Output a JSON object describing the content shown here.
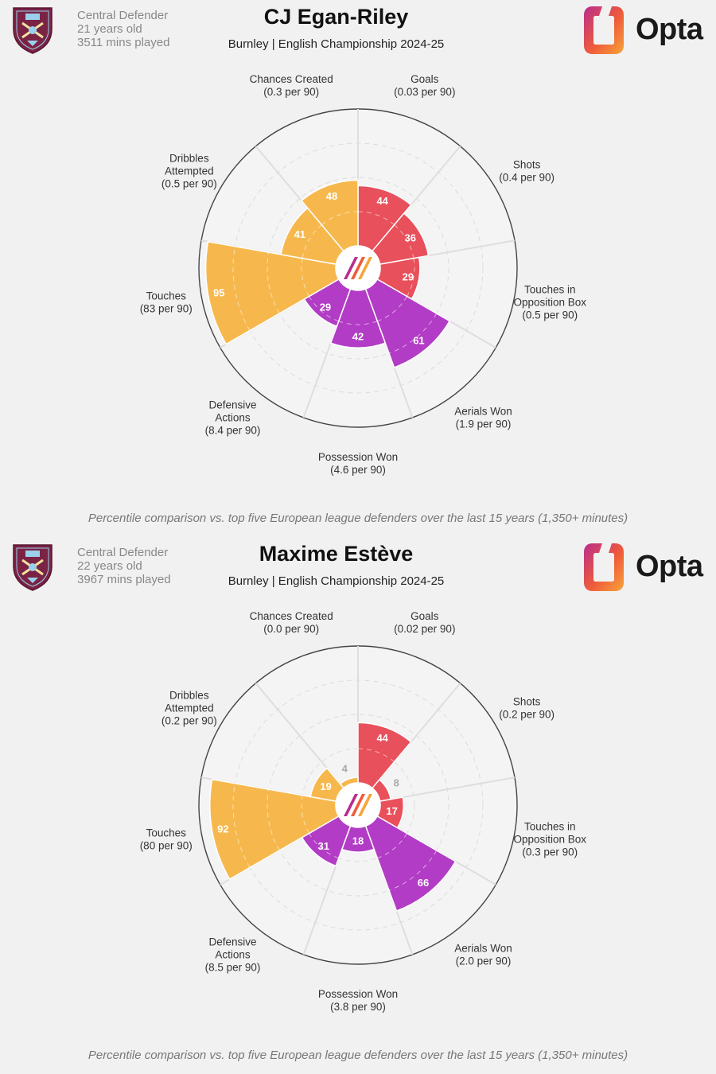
{
  "colors": {
    "attacking": "#e8505b",
    "defending": "#b23cc5",
    "possession": "#f6b84d",
    "crest": "#7a2345",
    "crest_accent": "#9bd0ec",
    "opta_gradient": [
      "#b92d8c",
      "#ef5b3a",
      "#f6a43a"
    ]
  },
  "logo_text": "Opta",
  "footnote": "Percentile comparison vs. top five European league defenders over the last 15 years (1,350+ minutes)",
  "panels": [
    {
      "position": "Central Defender",
      "age": "21 years old",
      "minutes": "3511 mins played",
      "player_name": "CJ Egan-Riley",
      "subtitle": "Burnley | English Championship 2024-25"
    },
    {
      "position": "Central Defender",
      "age": "22 years old",
      "minutes": "3967 mins played",
      "player_name": "Maxime Estève",
      "subtitle": "Burnley | English Championship 2024-25"
    }
  ],
  "chart_data": [
    {
      "type": "radar",
      "player": "CJ Egan-Riley",
      "rmax": 100,
      "grid": true,
      "metrics": [
        {
          "name": [
            "Goals"
          ],
          "per90": "(0.03 per 90)",
          "percentile": 44,
          "group": "attacking"
        },
        {
          "name": [
            "Shots"
          ],
          "per90": "(0.4 per 90)",
          "percentile": 36,
          "group": "attacking"
        },
        {
          "name": [
            "Touches in",
            "Opposition Box"
          ],
          "per90": "(0.5 per 90)",
          "percentile": 29,
          "group": "attacking"
        },
        {
          "name": [
            "Aerials Won"
          ],
          "per90": "(1.9 per 90)",
          "percentile": 61,
          "group": "defending"
        },
        {
          "name": [
            "Possession Won"
          ],
          "per90": "(4.6 per 90)",
          "percentile": 42,
          "group": "defending"
        },
        {
          "name": [
            "Defensive",
            "Actions"
          ],
          "per90": "(8.4 per 90)",
          "percentile": 29,
          "group": "defending"
        },
        {
          "name": [
            "Touches"
          ],
          "per90": "(83 per 90)",
          "percentile": 95,
          "group": "possession"
        },
        {
          "name": [
            "Dribbles",
            "Attempted"
          ],
          "per90": "(0.5 per 90)",
          "percentile": 41,
          "group": "possession"
        },
        {
          "name": [
            "Chances Created"
          ],
          "per90": "(0.3 per 90)",
          "percentile": 48,
          "group": "possession"
        }
      ]
    },
    {
      "type": "radar",
      "player": "Maxime Estève",
      "rmax": 100,
      "grid": true,
      "metrics": [
        {
          "name": [
            "Goals"
          ],
          "per90": "(0.02 per 90)",
          "percentile": 44,
          "group": "attacking"
        },
        {
          "name": [
            "Shots"
          ],
          "per90": "(0.2 per 90)",
          "percentile": 8,
          "group": "attacking"
        },
        {
          "name": [
            "Touches in",
            "Opposition Box"
          ],
          "per90": "(0.3 per 90)",
          "percentile": 17,
          "group": "attacking"
        },
        {
          "name": [
            "Aerials Won"
          ],
          "per90": "(2.0 per 90)",
          "percentile": 66,
          "group": "defending"
        },
        {
          "name": [
            "Possession Won"
          ],
          "per90": "(3.8 per 90)",
          "percentile": 18,
          "group": "defending"
        },
        {
          "name": [
            "Defensive",
            "Actions"
          ],
          "per90": "(8.5 per 90)",
          "percentile": 31,
          "group": "defending"
        },
        {
          "name": [
            "Touches"
          ],
          "per90": "(80 per 90)",
          "percentile": 92,
          "group": "possession"
        },
        {
          "name": [
            "Dribbles",
            "Attempted"
          ],
          "per90": "(0.2 per 90)",
          "percentile": 19,
          "group": "possession"
        },
        {
          "name": [
            "Chances Created"
          ],
          "per90": "(0.0 per 90)",
          "percentile": 4,
          "group": "possession"
        }
      ]
    }
  ]
}
